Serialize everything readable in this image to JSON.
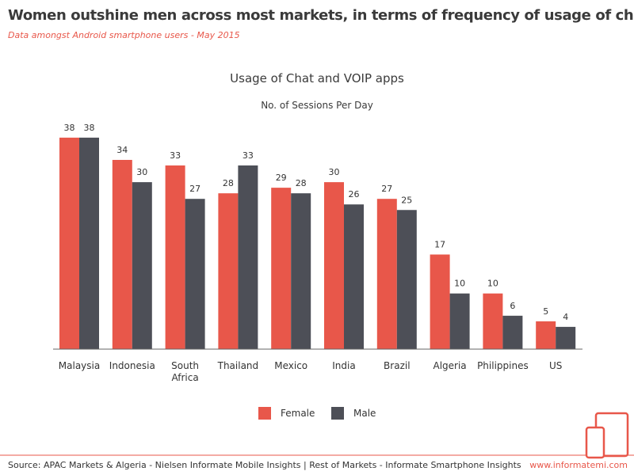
{
  "header": {
    "title": "Women outshine men across most markets, in terms of frequency of usage of chat apps!",
    "subtitle": "Data amongst Android smartphone users - May 2015"
  },
  "chart_data": {
    "type": "bar",
    "title": "Usage of Chat and VOIP apps",
    "subtitle": "No. of Sessions Per Day",
    "categories": [
      "Malaysia",
      "Indonesia",
      "South Africa",
      "Thailand",
      "Mexico",
      "India",
      "Brazil",
      "Algeria",
      "Philippines",
      "US"
    ],
    "series": [
      {
        "name": "Female",
        "color": "#e8574a",
        "values": [
          38,
          34,
          33,
          28,
          29,
          30,
          27,
          17,
          10,
          5
        ]
      },
      {
        "name": "Male",
        "color": "#4d4f57",
        "values": [
          38,
          30,
          27,
          33,
          28,
          26,
          25,
          10,
          6,
          4
        ]
      }
    ],
    "legend": "bottom"
  },
  "footer": {
    "source": "Source: APAC Markets & Algeria - Nielsen Informate Mobile Insights | Rest of Markets - Informate Smartphone Insights",
    "website": "www.informatemi.com"
  }
}
